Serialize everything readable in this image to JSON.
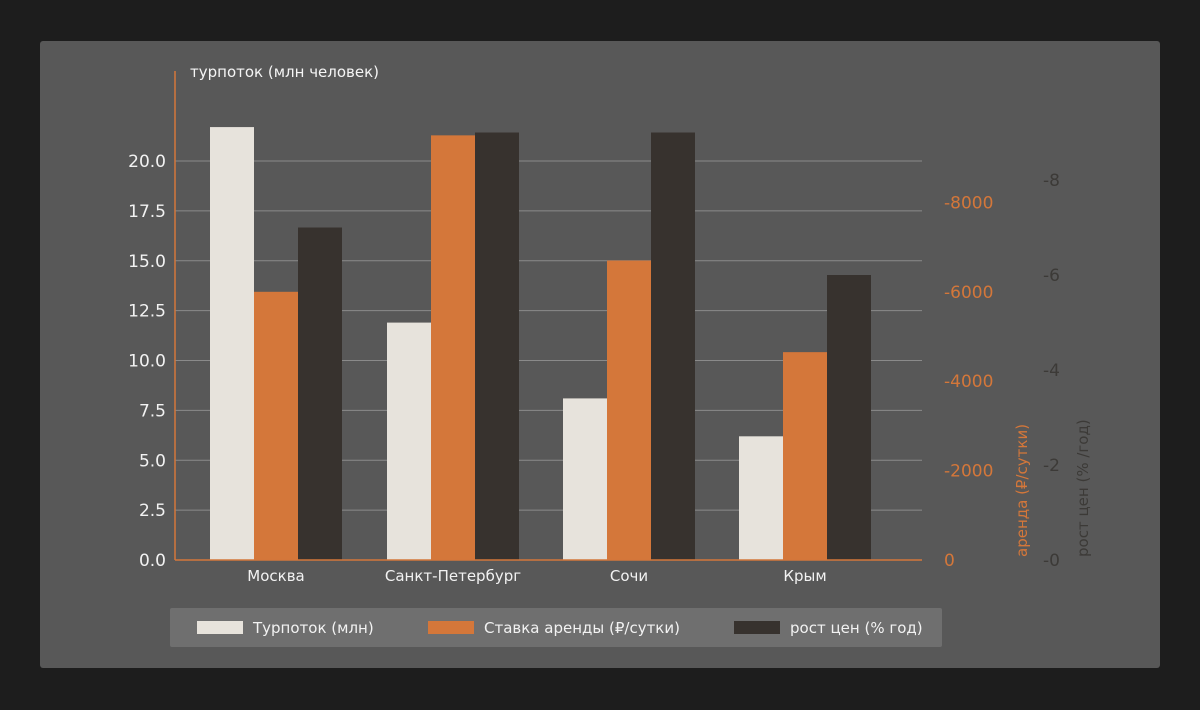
{
  "chart_data": {
    "type": "bar",
    "categories": [
      "Москва",
      "Санкт-Петербург",
      "Сочи",
      "Крым"
    ],
    "series": [
      {
        "name": "Турпоток (млн)",
        "values": [
          21.7,
          11.9,
          8.1,
          6.2
        ],
        "color": "#e7e3dc",
        "axis": "left"
      },
      {
        "name": "Ставка аренды (₽/сутки)",
        "values": [
          6000,
          9500,
          6700,
          4650
        ],
        "color": "#d4773a",
        "axis": "right1"
      },
      {
        "name": "рост цен (% год)",
        "values": [
          7.0,
          9.0,
          9.0,
          6.0
        ],
        "color": "#37322e",
        "axis": "right2"
      }
    ],
    "axes": {
      "left": {
        "label": "турпоток (млн человек)",
        "ticks": [
          "0.0",
          "2.5",
          "5.0",
          "7.5",
          "10.0",
          "12.5",
          "15.0",
          "17.5",
          "20.0"
        ],
        "range": [
          0,
          22.5
        ]
      },
      "right1": {
        "label": "аренда (₽/сутки)",
        "ticks": [
          "0",
          "-2000",
          "-4000",
          "-6000",
          "-8000"
        ],
        "range": [
          0,
          10000
        ],
        "color": "#d4773a"
      },
      "right2": {
        "label": "рост цен (% /год)",
        "ticks": [
          "-0",
          "-2",
          "-4",
          "-6",
          "-8"
        ],
        "range": [
          0,
          9.5
        ]
      }
    },
    "grid": true,
    "legend_position": "bottom"
  }
}
